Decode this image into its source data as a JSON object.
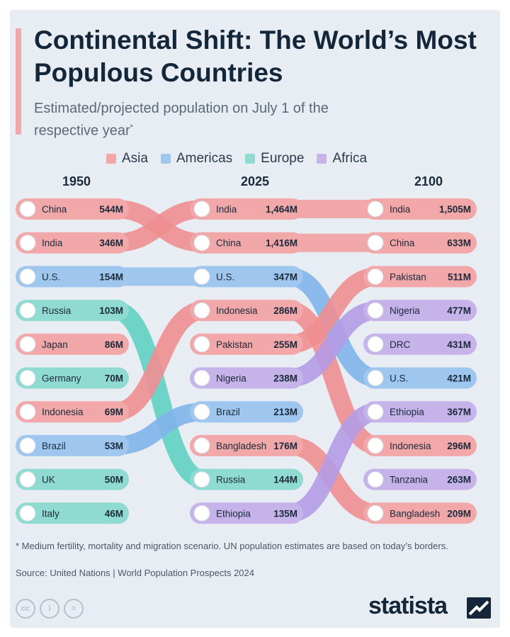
{
  "header": {
    "title": "Continental Shift: The World’s Most Populous Countries",
    "subtitle": "Estimated/projected population on July 1 of the respective year",
    "subtitle_mark": "*"
  },
  "legend": [
    {
      "label": "Asia",
      "color": "#f2a7a9"
    },
    {
      "label": "Americas",
      "color": "#9fc6ef"
    },
    {
      "label": "Europe",
      "color": "#8fdbd2"
    },
    {
      "label": "Africa",
      "color": "#c5b3ea"
    }
  ],
  "chart_data": {
    "type": "table",
    "columns": [
      "1950",
      "2025",
      "2100"
    ],
    "rankings": {
      "1950": [
        {
          "country": "China",
          "value": "544M",
          "region": "Asia"
        },
        {
          "country": "India",
          "value": "346M",
          "region": "Asia"
        },
        {
          "country": "U.S.",
          "value": "154M",
          "region": "Americas"
        },
        {
          "country": "Russia",
          "value": "103M",
          "region": "Europe"
        },
        {
          "country": "Japan",
          "value": "86M",
          "region": "Asia"
        },
        {
          "country": "Germany",
          "value": "70M",
          "region": "Europe"
        },
        {
          "country": "Indonesia",
          "value": "69M",
          "region": "Asia"
        },
        {
          "country": "Brazil",
          "value": "53M",
          "region": "Americas"
        },
        {
          "country": "UK",
          "value": "50M",
          "region": "Europe"
        },
        {
          "country": "Italy",
          "value": "46M",
          "region": "Europe"
        }
      ],
      "2025": [
        {
          "country": "India",
          "value": "1,464M",
          "region": "Asia"
        },
        {
          "country": "China",
          "value": "1,416M",
          "region": "Asia"
        },
        {
          "country": "U.S.",
          "value": "347M",
          "region": "Americas"
        },
        {
          "country": "Indonesia",
          "value": "286M",
          "region": "Asia"
        },
        {
          "country": "Pakistan",
          "value": "255M",
          "region": "Asia"
        },
        {
          "country": "Nigeria",
          "value": "238M",
          "region": "Africa"
        },
        {
          "country": "Brazil",
          "value": "213M",
          "region": "Americas"
        },
        {
          "country": "Bangladesh",
          "value": "176M",
          "region": "Asia"
        },
        {
          "country": "Russia",
          "value": "144M",
          "region": "Europe"
        },
        {
          "country": "Ethiopia",
          "value": "135M",
          "region": "Africa"
        }
      ],
      "2100": [
        {
          "country": "India",
          "value": "1,505M",
          "region": "Asia"
        },
        {
          "country": "China",
          "value": "633M",
          "region": "Asia"
        },
        {
          "country": "Pakistan",
          "value": "511M",
          "region": "Asia"
        },
        {
          "country": "Nigeria",
          "value": "477M",
          "region": "Africa"
        },
        {
          "country": "DRC",
          "value": "431M",
          "region": "Africa"
        },
        {
          "country": "U.S.",
          "value": "421M",
          "region": "Americas"
        },
        {
          "country": "Ethiopia",
          "value": "367M",
          "region": "Africa"
        },
        {
          "country": "Indonesia",
          "value": "296M",
          "region": "Asia"
        },
        {
          "country": "Tanzania",
          "value": "263M",
          "region": "Africa"
        },
        {
          "country": "Bangladesh",
          "value": "209M",
          "region": "Asia"
        }
      ]
    }
  },
  "colors": {
    "Asia": "#f2a7a9",
    "Americas": "#9fc6ef",
    "Europe": "#8fdbd2",
    "Africa": "#c5b3ea",
    "Asia_cross": "#ef8e91",
    "Americas_cross": "#7fb3ea",
    "Europe_cross": "#5fd0c2",
    "Africa_cross": "#b49be6"
  },
  "footer": {
    "footnote": "* Medium fertility, mortality and migration scenario. UN population estimates are based on today’s borders.",
    "source": "Source: United Nations | World Population Prospects 2024",
    "brand": "statista",
    "license_icons": [
      "cc",
      "i",
      "="
    ]
  }
}
